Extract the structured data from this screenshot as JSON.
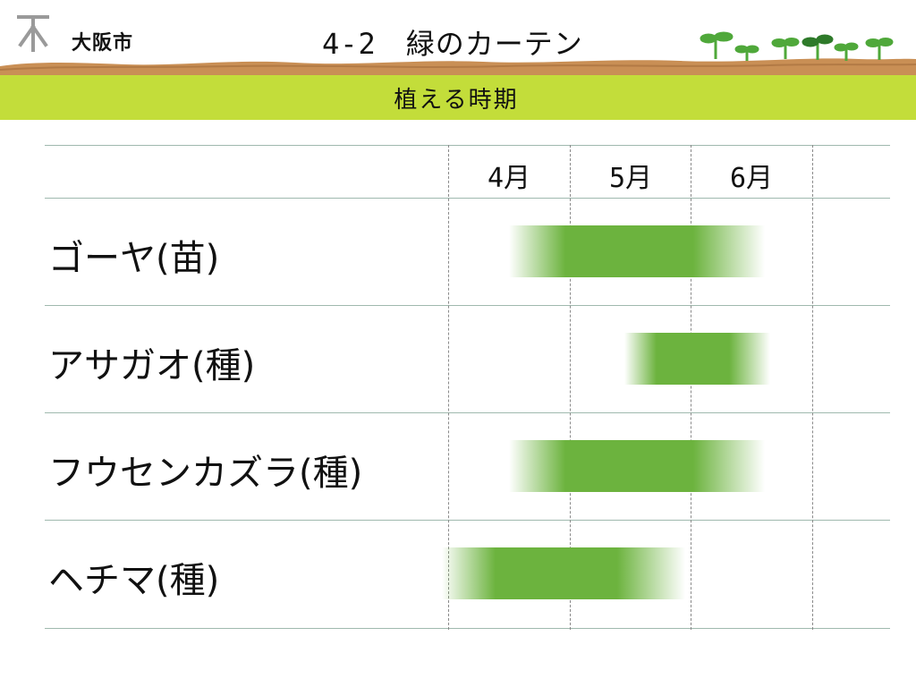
{
  "header": {
    "logo_icon": "osaka-city-emblem-icon",
    "city_name": "大阪市",
    "title": "4-2　緑のカーテン",
    "decoration_icon": "sprouts-icon",
    "colors": {
      "ground": "#c98f55",
      "band": "#c3dd3a",
      "sprout": "#4fa83a"
    }
  },
  "band": {
    "label": "植える時期"
  },
  "schedule": {
    "months": [
      "4月",
      "5月",
      "6月"
    ],
    "rows": [
      {
        "label": "ゴーヤ(苗)",
        "period": {
          "start": 4.5,
          "end": 6.6
        }
      },
      {
        "label": "アサガオ(種)",
        "period": {
          "start": 5.45,
          "end": 6.65
        }
      },
      {
        "label": "フウセンカズラ(種)",
        "period": {
          "start": 4.5,
          "end": 6.6
        }
      },
      {
        "label": "ヘチマ(種)",
        "period": {
          "start": 3.95,
          "end": 5.95
        }
      }
    ],
    "colors": {
      "bar": "#6cb33e",
      "rule": "#9fb9ae",
      "divider": "#8a8a8a"
    }
  }
}
